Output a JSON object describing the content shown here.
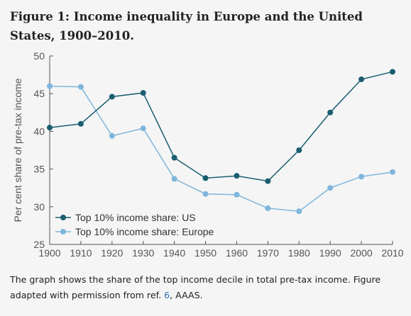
{
  "figure": {
    "title": "Figure 1: Income inequality in Europe and the United States, 1900–2010.",
    "caption_before_ref": "The graph shows the share of the top income decile in total pre-tax income. Figure adapted with permission from ref. ",
    "caption_ref": "6",
    "caption_after_ref": ", AAAS."
  },
  "chart_data": {
    "type": "line",
    "title": "",
    "xlabel": "",
    "ylabel": "Per cent share of pre-tax income",
    "x": [
      1900,
      1910,
      1920,
      1930,
      1940,
      1950,
      1960,
      1970,
      1980,
      1990,
      2000,
      2010
    ],
    "xlim": [
      1900,
      2010
    ],
    "ylim": [
      25,
      50
    ],
    "xticks": [
      "1900",
      "1910",
      "1920",
      "1930",
      "1940",
      "1950",
      "1960",
      "1970",
      "1980",
      "1990",
      "2000",
      "2010"
    ],
    "yticks": [
      25,
      30,
      35,
      40,
      45,
      50
    ],
    "grid": false,
    "legend_position": "bottom-left",
    "series": [
      {
        "name": "Top 10% income share: US",
        "color": "#1a5e70",
        "values": [
          40.5,
          41.0,
          44.6,
          45.1,
          36.5,
          33.8,
          34.1,
          33.4,
          37.5,
          42.5,
          46.9,
          47.9
        ]
      },
      {
        "name": "Top 10% income share: Europe",
        "color": "#7fb6dc",
        "values": [
          46.0,
          45.9,
          39.4,
          40.4,
          33.7,
          31.7,
          31.6,
          29.8,
          29.4,
          32.5,
          34.0,
          34.6
        ]
      }
    ]
  }
}
